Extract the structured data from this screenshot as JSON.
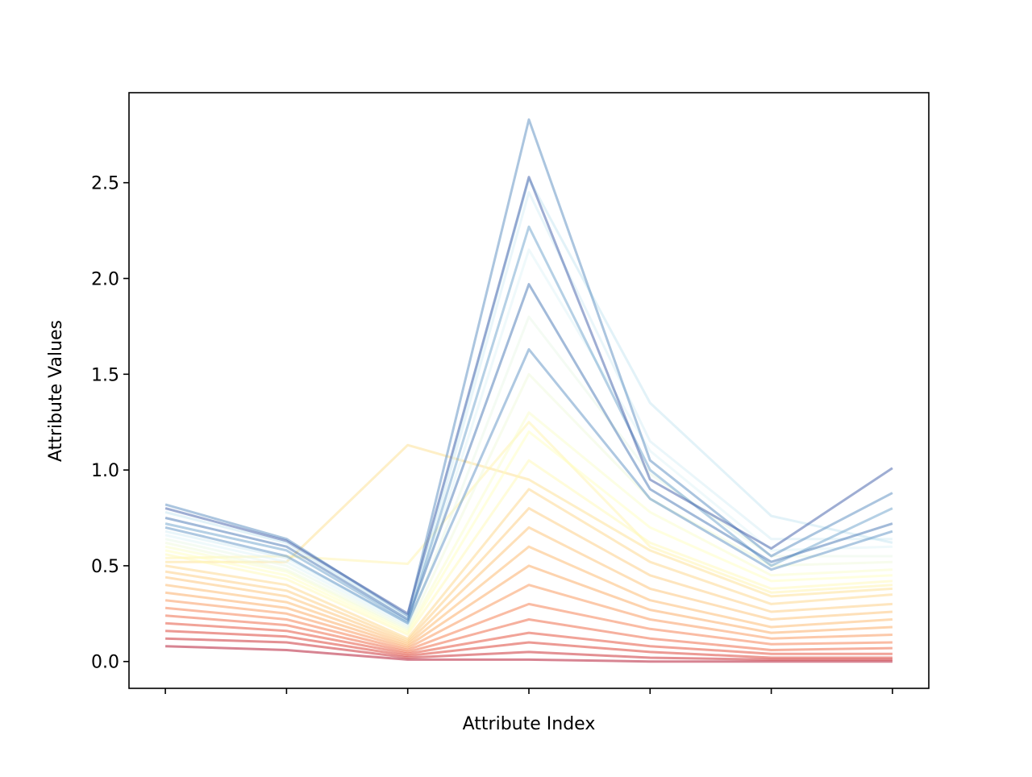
{
  "chart_data": {
    "type": "line",
    "title": "",
    "xlabel": "Attribute Index",
    "ylabel": "Attribute Values",
    "x": [
      0,
      1,
      2,
      3,
      4,
      5,
      6
    ],
    "xlim": [
      -0.3,
      6.3
    ],
    "ylim": [
      -0.14,
      2.97
    ],
    "yticks": [
      0.0,
      0.5,
      1.0,
      1.5,
      2.0,
      2.5
    ],
    "ytick_labels": [
      "0.0",
      "0.5",
      "1.0",
      "1.5",
      "2.0",
      "2.5"
    ],
    "xtick_labels": [],
    "grid": false,
    "legend": "none",
    "colormap": "RdYlBu",
    "colormap_stops": [
      "#a50026",
      "#d73027",
      "#f46d43",
      "#fdae61",
      "#fee090",
      "#ffffbf",
      "#e0f3f8",
      "#abd9e9",
      "#74add1",
      "#4575b4",
      "#313695"
    ],
    "line_alpha": 0.5,
    "line_count_estimate": 300,
    "representative_series": [
      {
        "values": [
          0.8,
          0.63,
          0.25,
          2.53,
          0.95,
          0.59,
          1.01
        ],
        "color_level": 0.94
      },
      {
        "values": [
          0.82,
          0.64,
          0.24,
          2.83,
          1.05,
          0.55,
          0.88
        ],
        "color_level": 0.86
      },
      {
        "values": [
          0.75,
          0.6,
          0.22,
          1.97,
          0.9,
          0.52,
          0.72
        ],
        "color_level": 0.9
      },
      {
        "values": [
          0.72,
          0.58,
          0.21,
          2.27,
          1.0,
          0.5,
          0.8
        ],
        "color_level": 0.82
      },
      {
        "values": [
          0.7,
          0.55,
          0.2,
          1.63,
          0.85,
          0.48,
          0.68
        ],
        "color_level": 0.85
      },
      {
        "values": [
          0.78,
          0.62,
          0.23,
          2.52,
          1.35,
          0.76,
          0.62
        ],
        "color_level": 0.65
      },
      {
        "values": [
          0.68,
          0.54,
          0.2,
          2.45,
          1.15,
          0.64,
          0.64
        ],
        "color_level": 0.62
      },
      {
        "values": [
          0.66,
          0.52,
          0.19,
          2.15,
          1.1,
          0.58,
          0.6
        ],
        "color_level": 0.6
      },
      {
        "values": [
          0.64,
          0.5,
          0.18,
          1.8,
          0.98,
          0.55,
          0.55
        ],
        "color_level": 0.57
      },
      {
        "values": [
          0.62,
          0.48,
          0.17,
          1.5,
          0.85,
          0.5,
          0.52
        ],
        "color_level": 0.55
      },
      {
        "values": [
          0.6,
          0.47,
          0.16,
          1.3,
          0.78,
          0.45,
          0.48
        ],
        "color_level": 0.52
      },
      {
        "values": [
          0.58,
          0.45,
          0.15,
          1.2,
          0.7,
          0.42,
          0.45
        ],
        "color_level": 0.5
      },
      {
        "values": [
          0.56,
          0.43,
          0.14,
          1.05,
          0.62,
          0.38,
          0.42
        ],
        "color_level": 0.48
      },
      {
        "values": [
          0.54,
          0.55,
          0.51,
          1.25,
          0.6,
          0.36,
          0.4
        ],
        "color_level": 0.46
      },
      {
        "values": [
          0.52,
          0.52,
          1.13,
          0.95,
          0.58,
          0.34,
          0.38
        ],
        "color_level": 0.4
      },
      {
        "values": [
          0.5,
          0.4,
          0.12,
          0.9,
          0.52,
          0.3,
          0.35
        ],
        "color_level": 0.38
      },
      {
        "values": [
          0.47,
          0.37,
          0.11,
          0.8,
          0.45,
          0.26,
          0.3
        ],
        "color_level": 0.36
      },
      {
        "values": [
          0.44,
          0.34,
          0.1,
          0.7,
          0.38,
          0.22,
          0.26
        ],
        "color_level": 0.34
      },
      {
        "values": [
          0.4,
          0.31,
          0.09,
          0.6,
          0.32,
          0.18,
          0.22
        ],
        "color_level": 0.32
      },
      {
        "values": [
          0.36,
          0.28,
          0.08,
          0.5,
          0.27,
          0.15,
          0.18
        ],
        "color_level": 0.29
      },
      {
        "values": [
          0.32,
          0.25,
          0.07,
          0.4,
          0.22,
          0.12,
          0.14
        ],
        "color_level": 0.26
      },
      {
        "values": [
          0.28,
          0.22,
          0.06,
          0.3,
          0.17,
          0.09,
          0.1
        ],
        "color_level": 0.22
      },
      {
        "values": [
          0.24,
          0.19,
          0.05,
          0.22,
          0.12,
          0.06,
          0.07
        ],
        "color_level": 0.18
      },
      {
        "values": [
          0.2,
          0.16,
          0.04,
          0.15,
          0.08,
          0.04,
          0.04
        ],
        "color_level": 0.14
      },
      {
        "values": [
          0.16,
          0.13,
          0.03,
          0.1,
          0.05,
          0.02,
          0.02
        ],
        "color_level": 0.11
      },
      {
        "values": [
          0.12,
          0.1,
          0.02,
          0.05,
          0.02,
          0.01,
          0.01
        ],
        "color_level": 0.07
      },
      {
        "values": [
          0.08,
          0.06,
          0.01,
          0.01,
          0.0,
          0.0,
          0.0
        ],
        "color_level": 0.02
      }
    ]
  }
}
